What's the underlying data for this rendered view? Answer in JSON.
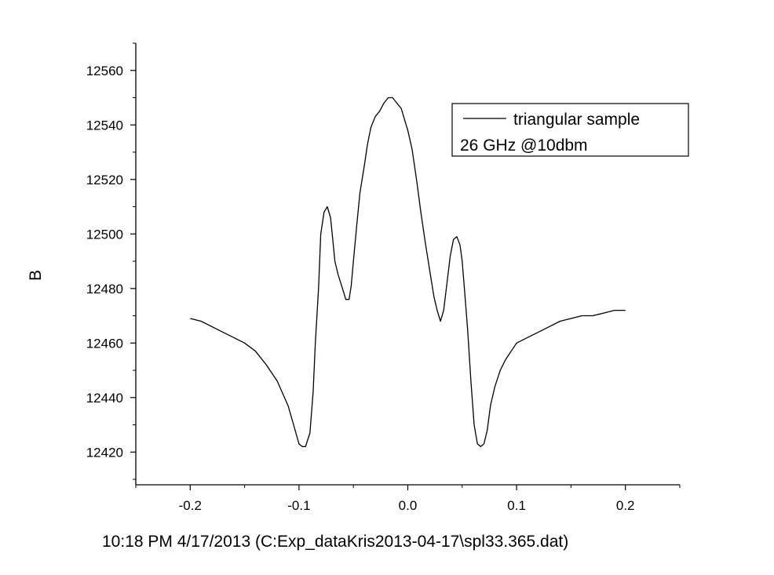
{
  "chart_data": {
    "type": "line",
    "title": "",
    "xlabel": "",
    "ylabel": "B",
    "xlim": [
      -0.25,
      0.25
    ],
    "ylim": [
      12408,
      12570
    ],
    "x_ticks": [
      -0.2,
      -0.1,
      0.0,
      0.1,
      0.2
    ],
    "x_tick_labels": [
      "-0.2",
      "-0.1",
      "0.0",
      "0.1",
      "0.2"
    ],
    "y_ticks": [
      12420,
      12440,
      12460,
      12480,
      12500,
      12520,
      12540,
      12560
    ],
    "y_tick_labels": [
      "12420",
      "12440",
      "12460",
      "12480",
      "12500",
      "12520",
      "12540",
      "12560"
    ],
    "grid": false,
    "legend": {
      "placement": "top-right",
      "entries": [
        "triangular sample"
      ],
      "note": "26 GHz @10dbm"
    },
    "line_color": "#000000",
    "series": [
      {
        "name": "triangular sample",
        "x": [
          -0.2,
          -0.19,
          -0.18,
          -0.17,
          -0.16,
          -0.15,
          -0.14,
          -0.13,
          -0.12,
          -0.11,
          -0.105,
          -0.1,
          -0.097,
          -0.094,
          -0.09,
          -0.087,
          -0.085,
          -0.082,
          -0.08,
          -0.077,
          -0.074,
          -0.071,
          -0.069,
          -0.067,
          -0.064,
          -0.06,
          -0.057,
          -0.054,
          -0.052,
          -0.05,
          -0.047,
          -0.044,
          -0.04,
          -0.037,
          -0.034,
          -0.03,
          -0.026,
          -0.022,
          -0.018,
          -0.014,
          -0.01,
          -0.006,
          -0.003,
          0.0,
          0.004,
          0.008,
          0.012,
          0.016,
          0.02,
          0.024,
          0.027,
          0.03,
          0.033,
          0.036,
          0.039,
          0.042,
          0.045,
          0.048,
          0.05,
          0.052,
          0.055,
          0.058,
          0.061,
          0.064,
          0.067,
          0.07,
          0.073,
          0.076,
          0.08,
          0.085,
          0.09,
          0.1,
          0.11,
          0.12,
          0.13,
          0.14,
          0.15,
          0.16,
          0.17,
          0.18,
          0.19,
          0.2
        ],
        "y": [
          12469,
          12468,
          12466,
          12464,
          12462,
          12460,
          12457,
          12452,
          12446,
          12437,
          12430,
          12423,
          12422,
          12422,
          12427,
          12442,
          12460,
          12480,
          12500,
          12508,
          12510,
          12506,
          12498,
          12490,
          12485,
          12480,
          12476,
          12476,
          12481,
          12490,
          12503,
          12515,
          12525,
          12533,
          12539,
          12543,
          12545,
          12548,
          12550,
          12550,
          12548,
          12546,
          12542,
          12538,
          12531,
          12520,
          12508,
          12497,
          12487,
          12477,
          12472,
          12468,
          12472,
          12482,
          12492,
          12498,
          12499,
          12496,
          12490,
          12480,
          12465,
          12446,
          12430,
          12423,
          12422,
          12423,
          12428,
          12437,
          12444,
          12450,
          12454,
          12460,
          12462,
          12464,
          12466,
          12468,
          12469,
          12470,
          12470,
          12471,
          12472,
          12472
        ]
      }
    ]
  },
  "footer": {
    "timestamp": "10:18 PM  4/17/2013 (C:Exp_dataKris2013-04-17\\spl33.365.dat)"
  }
}
